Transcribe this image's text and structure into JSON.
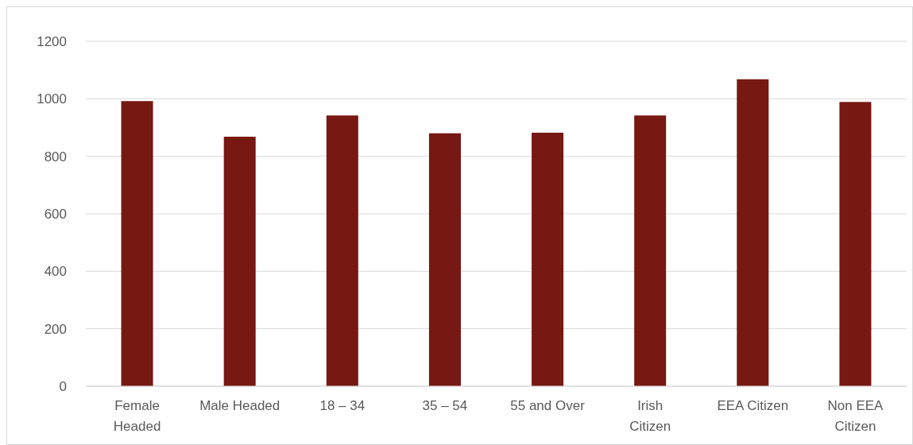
{
  "chart_data": {
    "type": "bar",
    "categories": [
      "Female Headed",
      "Male Headed",
      "18 – 34",
      "35 – 54",
      "55 and Over",
      "Irish Citizen",
      "EEA Citizen",
      "Non EEA Citizen"
    ],
    "values": [
      992,
      868,
      942,
      880,
      882,
      942,
      1068,
      989
    ],
    "color": "#771812",
    "ylim": [
      0,
      1200
    ],
    "yticks": [
      0,
      200,
      400,
      600,
      800,
      1000,
      1200
    ],
    "grid": "y"
  }
}
